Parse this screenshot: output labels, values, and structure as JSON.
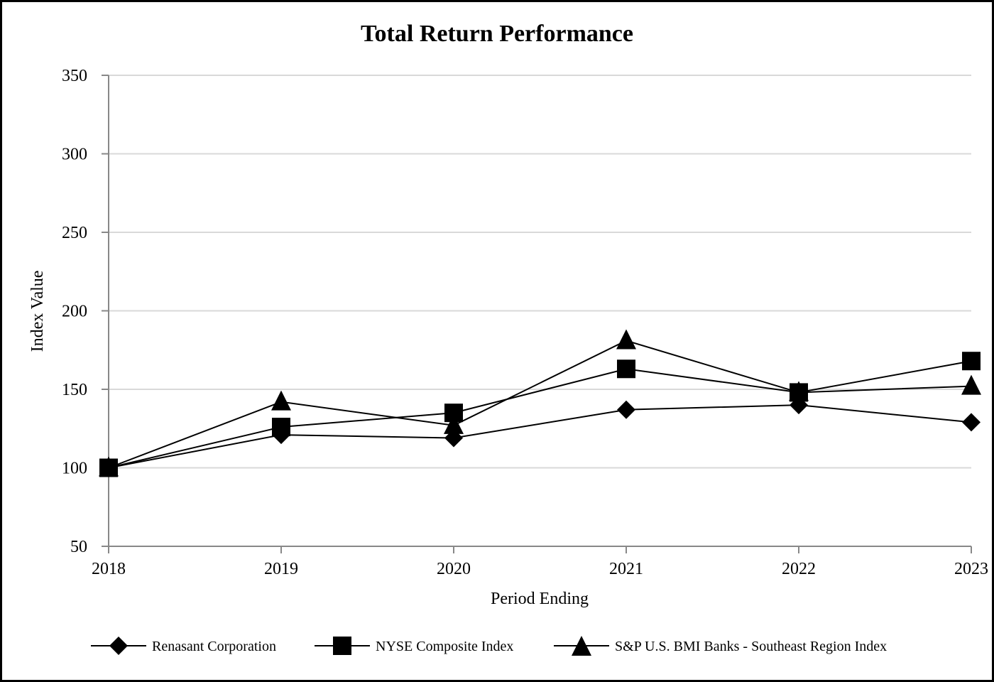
{
  "chart_data": {
    "type": "line",
    "title": "Total Return Performance",
    "xlabel": "Period Ending",
    "ylabel": "Index Value",
    "categories": [
      "2018",
      "2019",
      "2020",
      "2021",
      "2022",
      "2023"
    ],
    "ylim": [
      50,
      350
    ],
    "yticks": [
      50,
      100,
      150,
      200,
      250,
      300,
      350
    ],
    "grid": true,
    "legend_position": "bottom",
    "series": [
      {
        "name": "Renasant Corporation",
        "marker": "diamond",
        "values": [
          100,
          121,
          119,
          137,
          140,
          129
        ]
      },
      {
        "name": "NYSE Composite Index",
        "marker": "square",
        "values": [
          100,
          126,
          135,
          163,
          148,
          168
        ]
      },
      {
        "name": "S&P U.S. BMI Banks - Southeast Region Index",
        "marker": "triangle",
        "values": [
          100,
          142,
          127,
          181,
          148,
          152
        ]
      }
    ],
    "colors": {
      "line": "#000000",
      "grid": "#d9d9d9",
      "axis": "#888888"
    }
  }
}
